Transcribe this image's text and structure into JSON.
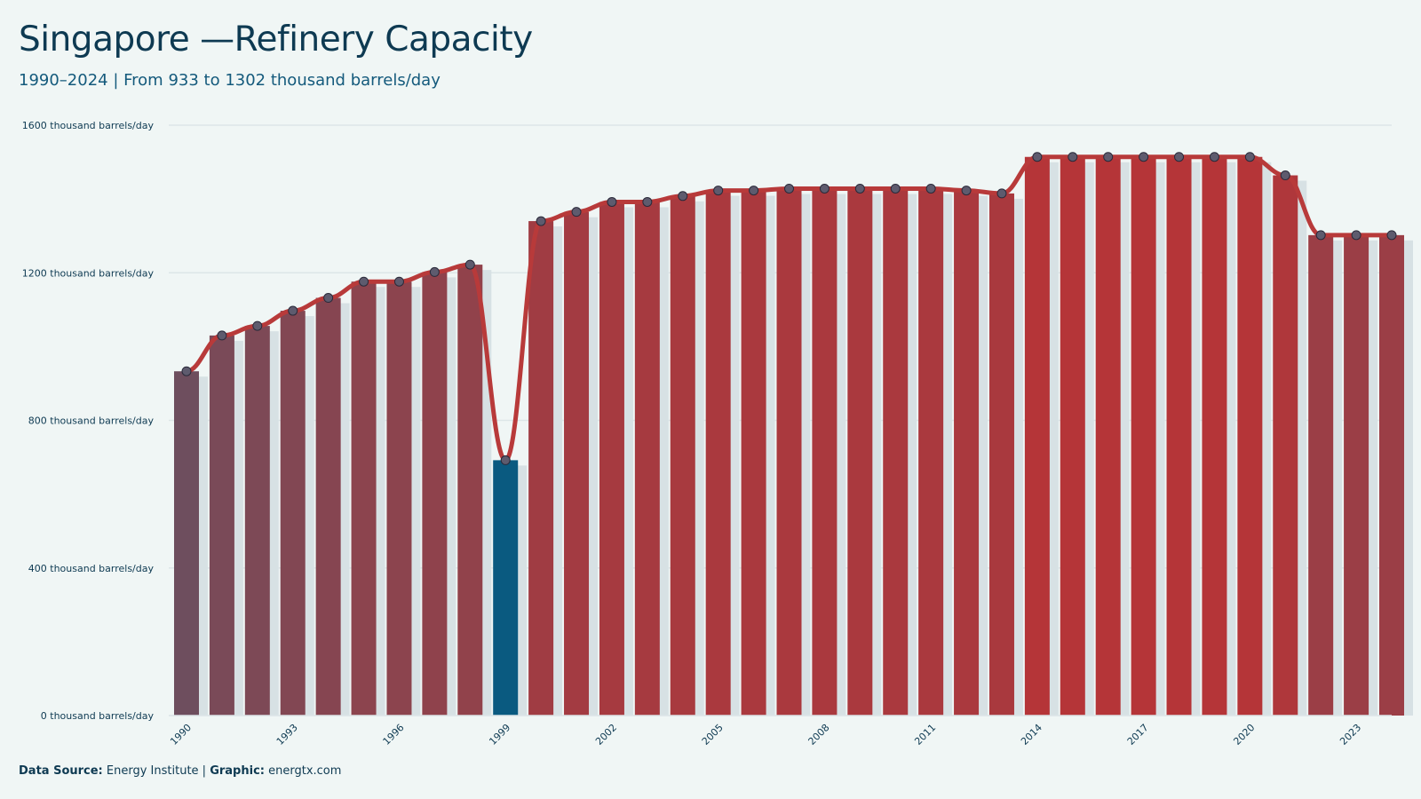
{
  "header": {
    "title": "Singapore —Refinery Capacity",
    "subtitle": "1990–2024 | From 933 to 1302 thousand barrels/day"
  },
  "footer": {
    "source_label": "Data Source:",
    "source_value": "Energy Institute |",
    "graphic_label": "Graphic:",
    "graphic_value": "energtx.com"
  },
  "colors": {
    "background": "#f0f6f5",
    "line": "#b83a3a",
    "highlight_bar": "#0a5a80",
    "bar_early": "#6e4e5e",
    "bar_peak": "#b53538",
    "shadow_bar": "#d7e1e4",
    "grid": "#dde6e8",
    "text": "#0e3a52"
  },
  "chart_data": {
    "type": "bar",
    "categories": [
      "1990",
      "1991",
      "1992",
      "1993",
      "1994",
      "1995",
      "1996",
      "1997",
      "1998",
      "1999",
      "2000",
      "2001",
      "2002",
      "2003",
      "2004",
      "2005",
      "2006",
      "2007",
      "2008",
      "2009",
      "2010",
      "2011",
      "2012",
      "2013",
      "2014",
      "2015",
      "2016",
      "2017",
      "2018",
      "2019",
      "2020",
      "2021",
      "2022",
      "2023",
      "2024"
    ],
    "values": [
      933,
      1030,
      1056,
      1097,
      1132,
      1176,
      1176,
      1202,
      1222,
      692,
      1340,
      1365,
      1392,
      1392,
      1408,
      1423,
      1423,
      1428,
      1428,
      1428,
      1428,
      1428,
      1423,
      1415,
      1514,
      1514,
      1514,
      1514,
      1514,
      1514,
      1514,
      1464,
      1302,
      1302,
      1302
    ],
    "x_tick_labels": [
      "1990",
      "1993",
      "1996",
      "1999",
      "2002",
      "2005",
      "2008",
      "2011",
      "2014",
      "2017",
      "2020",
      "2023"
    ],
    "y_ticks": [
      0,
      400,
      800,
      1200,
      1600
    ],
    "y_tick_labels": [
      "0 thousand barrels/day",
      "400 thousand barrels/day",
      "800 thousand barrels/day",
      "1200 thousand barrels/day",
      "1600 thousand barrels/day"
    ],
    "ylim": [
      0,
      1600
    ],
    "highlight_category": "1999",
    "overlay": "line with markers",
    "grid": "horizontal",
    "title": "Singapore —Refinery Capacity",
    "xlabel": "",
    "ylabel": ""
  }
}
